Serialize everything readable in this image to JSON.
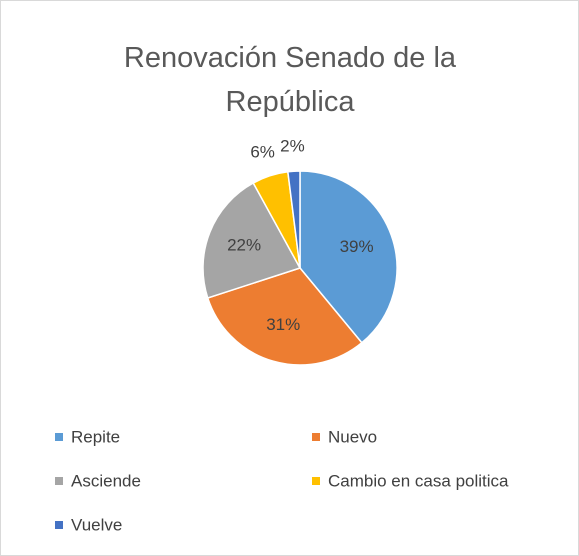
{
  "chart_data": {
    "type": "pie",
    "title": "Renovación Senado de la República",
    "categories": [
      "Repite",
      "Nuevo",
      "Asciende",
      "Cambio en casa politica",
      "Vuelve"
    ],
    "values": [
      39,
      31,
      22,
      6,
      2
    ],
    "value_labels": [
      "39%",
      "31%",
      "22%",
      "6%",
      "2%"
    ],
    "colors": [
      "#5b9bd5",
      "#ed7d31",
      "#a5a5a5",
      "#ffc000",
      "#4472c4"
    ],
    "legend": "bottom"
  }
}
